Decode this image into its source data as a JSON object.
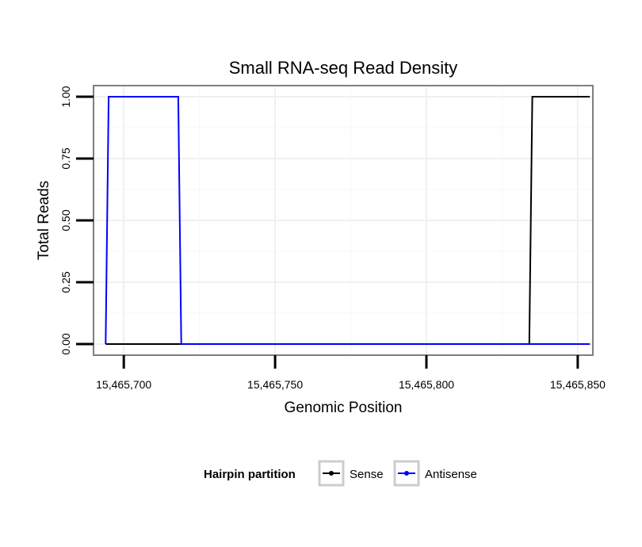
{
  "chart_data": {
    "type": "line",
    "title": "Small RNA-seq Read Density",
    "xlabel": "Genomic Position",
    "ylabel": "Total Reads",
    "xlim": [
      15465690,
      15465855
    ],
    "ylim": [
      -0.045,
      1.045
    ],
    "x_ticks": [
      15465700,
      15465750,
      15465800,
      15465850
    ],
    "x_tick_labels": [
      "15,465,700",
      "15,465,750",
      "15,465,800",
      "15,465,850"
    ],
    "y_ticks": [
      0,
      0.25,
      0.5,
      0.75,
      1
    ],
    "y_tick_labels": [
      "0.00",
      "0.25",
      "0.50",
      "0.75",
      "1.00"
    ],
    "grid": true,
    "legend": {
      "title": "Hairpin partition",
      "position": "bottom"
    },
    "series": [
      {
        "name": "Sense",
        "color": "#000000",
        "x": [
          15465694,
          15465834,
          15465835,
          15465854
        ],
        "values": [
          0,
          0,
          1,
          1
        ]
      },
      {
        "name": "Antisense",
        "color": "#0000ff",
        "x": [
          15465694,
          15465695,
          15465718,
          15465719,
          15465854
        ],
        "values": [
          0,
          1,
          1,
          0,
          0
        ]
      }
    ]
  }
}
